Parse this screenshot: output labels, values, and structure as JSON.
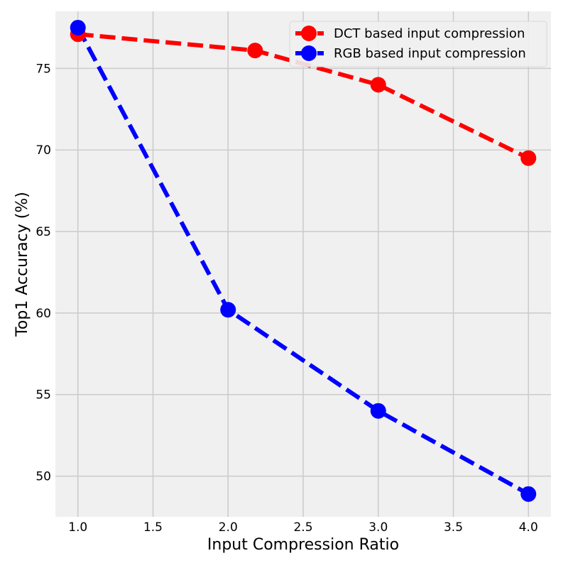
{
  "chart_data": {
    "type": "line",
    "title": "",
    "xlabel": "Input Compression Ratio",
    "ylabel": "Top1 Accuracy (%)",
    "xlim": [
      0.85,
      4.15
    ],
    "ylim": [
      47.5,
      78.5
    ],
    "x_ticks": [
      "1.0",
      "1.5",
      "2.0",
      "2.5",
      "3.0",
      "3.5",
      "4.0"
    ],
    "x_tick_values": [
      1.0,
      1.5,
      2.0,
      2.5,
      3.0,
      3.5,
      4.0
    ],
    "y_ticks": [
      "50",
      "55",
      "60",
      "65",
      "70",
      "75"
    ],
    "y_tick_values": [
      50,
      55,
      60,
      65,
      70,
      75
    ],
    "grid": true,
    "legend_position": "top-right",
    "background": "#f0f0f0",
    "grid_color": "#cbcbcb",
    "series": [
      {
        "name": "DCT based input compression",
        "color": "#ff0000",
        "line_style": "dashed",
        "marker": "circle",
        "x": [
          1.0,
          2.18,
          3.0,
          4.0
        ],
        "y": [
          77.1,
          76.1,
          74.0,
          69.5
        ]
      },
      {
        "name": "RGB based input compression",
        "color": "#0000ff",
        "line_style": "dashed",
        "marker": "circle",
        "x": [
          1.0,
          2.0,
          3.0,
          4.0
        ],
        "y": [
          77.5,
          60.2,
          54.0,
          48.9
        ]
      }
    ]
  }
}
